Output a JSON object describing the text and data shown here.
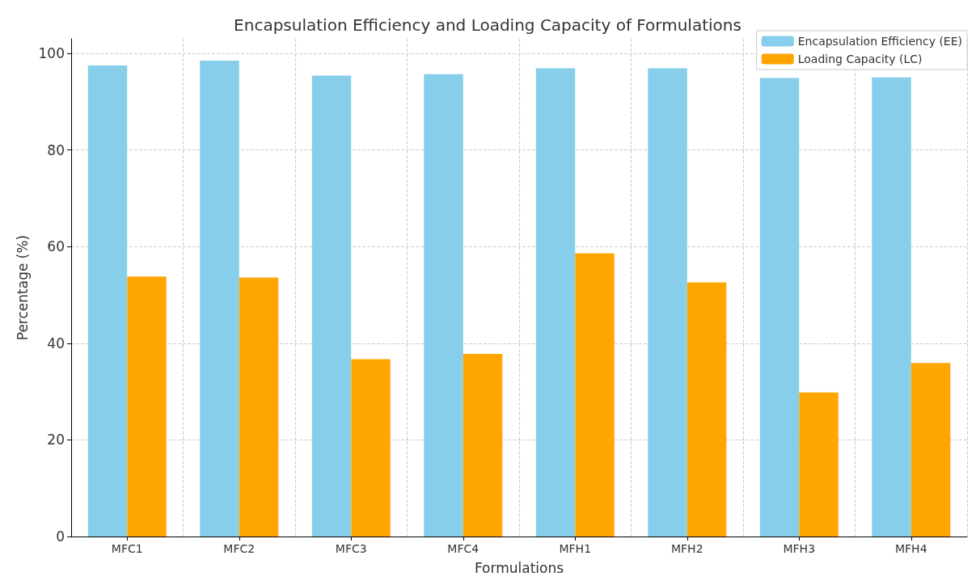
{
  "chart_data": {
    "type": "bar",
    "title": "Encapsulation Efficiency and Loading Capacity of Formulations",
    "xlabel": "Formulations",
    "ylabel": "Percentage (%)",
    "categories": [
      "MFC1",
      "MFC2",
      "MFC3",
      "MFC4",
      "MFH1",
      "MFH2",
      "MFH3",
      "MFH4"
    ],
    "series": [
      {
        "name": "Encapsulation Efficiency (EE)",
        "color": "#87ceeb",
        "values": [
          97.5,
          98.5,
          95.4,
          95.7,
          96.9,
          96.9,
          94.9,
          95.0
        ]
      },
      {
        "name": "Loading Capacity (LC)",
        "color": "#ffa500",
        "values": [
          53.8,
          53.6,
          36.7,
          37.8,
          58.6,
          52.6,
          29.8,
          35.9
        ]
      }
    ],
    "ylim": [
      0,
      103
    ],
    "yticks": [
      0,
      20,
      40,
      60,
      80,
      100
    ],
    "grid": true,
    "legend": "top right"
  }
}
